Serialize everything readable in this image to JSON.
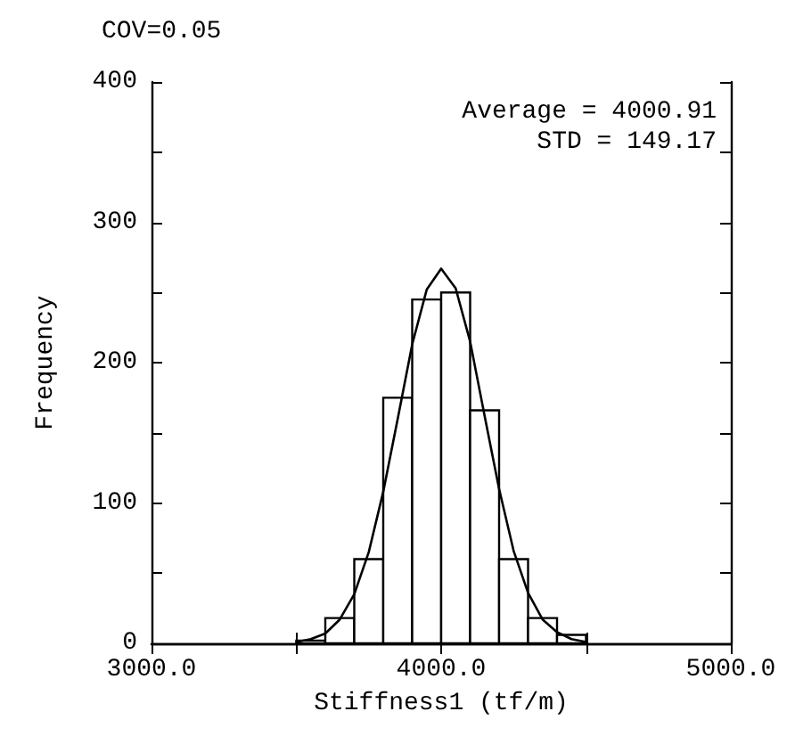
{
  "chart_data": {
    "type": "histogram",
    "title": "COV=0.05",
    "xlabel": "Stiffness1 (tf/m)",
    "ylabel": "Frequency",
    "bins": [
      3500,
      3600,
      3700,
      3800,
      3900,
      4000,
      4100,
      4200,
      4300,
      4400,
      4500
    ],
    "values": [
      2,
      18,
      60,
      175,
      245,
      250,
      166,
      60,
      18,
      6
    ],
    "color": "#ffffff",
    "series": [
      {
        "type": "line",
        "color": "#000000",
        "x": [
          3500,
          3550,
          3600,
          3650,
          3700,
          3750,
          3800,
          3850,
          3900,
          3950,
          4000,
          4050,
          4100,
          4150,
          4200,
          4250,
          4300,
          4350,
          4400,
          4450,
          4500
        ],
        "values": [
          1,
          3,
          7,
          17,
          35,
          65,
          108,
          160,
          213,
          252,
          267,
          253,
          215,
          162,
          110,
          66,
          36,
          17,
          8,
          3,
          1
        ]
      }
    ],
    "xlim": [
      3000,
      5000
    ],
    "xticks": [
      {
        "value": 3000,
        "label": "3000.0"
      },
      {
        "value": 3500,
        "label": null
      },
      {
        "value": 4000,
        "label": "4000.0"
      },
      {
        "value": 4500,
        "label": null
      },
      {
        "value": 5000,
        "label": "5000.0"
      }
    ],
    "ylim": [
      0,
      400
    ],
    "yticks": [
      0,
      {
        "value": 50,
        "label": null
      },
      100,
      {
        "value": 150,
        "label": null
      },
      200,
      {
        "value": 250,
        "label": null
      },
      300,
      {
        "value": 350,
        "label": null
      },
      400
    ],
    "annotations": [
      "Average = 4000.91",
      "STD = 149.17"
    ],
    "grid": false
  }
}
